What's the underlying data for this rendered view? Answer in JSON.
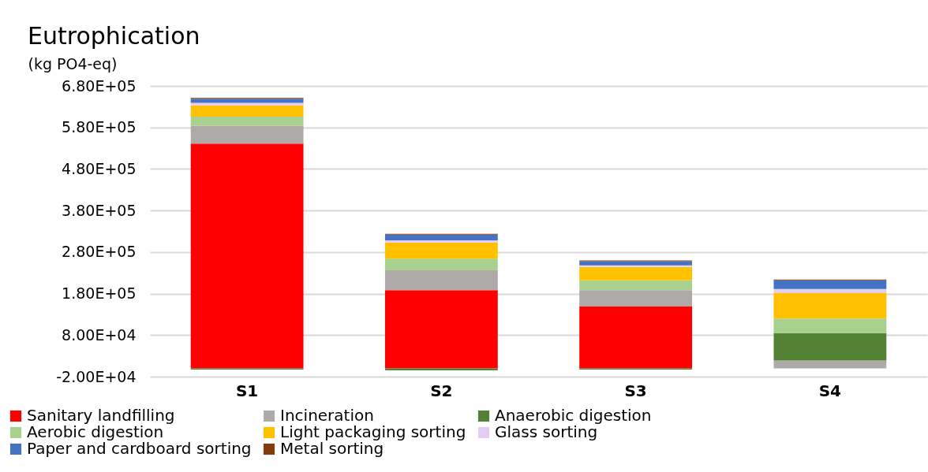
{
  "chart_data": {
    "type": "bar",
    "title": "Eutrophication",
    "ylabel": "(kg PO4-eq)",
    "categories": [
      "S1",
      "S2",
      "S3",
      "S4"
    ],
    "stacked": true,
    "series": [
      {
        "name": "Sanitary landfilling",
        "color": "#ff0000",
        "values": [
          541000,
          188000,
          150000,
          0
        ]
      },
      {
        "name": "Incineration",
        "color": "#aeaaaa",
        "values": [
          43000,
          48000,
          38000,
          19000
        ]
      },
      {
        "name": "Anaerobic digestion",
        "color": "#548235",
        "values": [
          -3000,
          -5000,
          -3000,
          66000
        ]
      },
      {
        "name": "Aerobic digestion",
        "color": "#a9d18e",
        "values": [
          22000,
          28000,
          24000,
          35000
        ]
      },
      {
        "name": "Light packaging sorting",
        "color": "#ffc000",
        "values": [
          27000,
          39000,
          32000,
          62000
        ]
      },
      {
        "name": "Glass sorting",
        "color": "#e4ccf4",
        "values": [
          6000,
          5000,
          4000,
          9000
        ]
      },
      {
        "name": "Paper and cardboard sorting",
        "color": "#4472c4",
        "values": [
          10000,
          14000,
          10000,
          21000
        ]
      },
      {
        "name": "Metal sorting",
        "color": "#843c0c",
        "values": [
          2000,
          2000,
          2000,
          2000
        ]
      }
    ],
    "ylim": [
      -20000,
      680000
    ],
    "yticks": [
      {
        "value": -20000,
        "label": "-2.00E+04"
      },
      {
        "value": 80000,
        "label": "8.00E+04"
      },
      {
        "value": 180000,
        "label": "1.80E+05"
      },
      {
        "value": 280000,
        "label": "2.80E+05"
      },
      {
        "value": 380000,
        "label": "3.80E+05"
      },
      {
        "value": 480000,
        "label": "4.80E+05"
      },
      {
        "value": 580000,
        "label": "5.80E+05"
      },
      {
        "value": 680000,
        "label": "6.80E+05"
      }
    ],
    "grid": "y",
    "legend": "bottom"
  }
}
